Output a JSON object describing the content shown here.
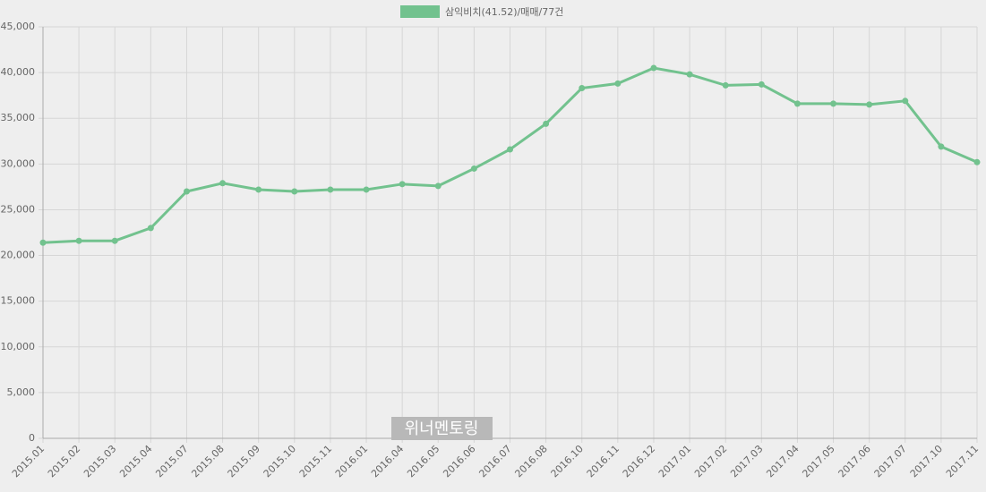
{
  "chart_data": {
    "type": "line",
    "categories": [
      "2015.01",
      "2015.02",
      "2015.03",
      "2015.04",
      "2015.07",
      "2015.08",
      "2015.09",
      "2015.10",
      "2015.11",
      "2016.01",
      "2016.04",
      "2016.05",
      "2016.06",
      "2016.07",
      "2016.08",
      "2016.10",
      "2016.11",
      "2016.12",
      "2017.01",
      "2017.02",
      "2017.03",
      "2017.04",
      "2017.05",
      "2017.06",
      "2017.07",
      "2017.10",
      "2017.11"
    ],
    "series": [
      {
        "name": "삼익비치(41.52)/매매/77건",
        "color": "#72c28e",
        "values": [
          21400,
          21600,
          21600,
          23000,
          27000,
          27900,
          27200,
          27000,
          27200,
          27200,
          27800,
          27600,
          29500,
          31600,
          34400,
          38300,
          38800,
          40500,
          39800,
          38600,
          38700,
          36600,
          36600,
          36500,
          36900,
          31900,
          30200
        ]
      }
    ],
    "ylim": [
      0,
      45000
    ],
    "yticks": [
      0,
      {
        "value": 5000,
        "label": "5,000"
      },
      {
        "value": 10000,
        "label": "10,000"
      },
      {
        "value": 15000,
        "label": "15,000"
      },
      {
        "value": 20000,
        "label": "20,000"
      },
      {
        "value": 25000,
        "label": "25,000"
      },
      {
        "value": 30000,
        "label": "30,000"
      },
      {
        "value": 35000,
        "label": "35,000"
      },
      {
        "value": 40000,
        "label": "40,000"
      },
      {
        "value": 45000,
        "label": "45,000"
      }
    ],
    "grid": true,
    "legend": "top",
    "watermark": "위너멘토링"
  }
}
